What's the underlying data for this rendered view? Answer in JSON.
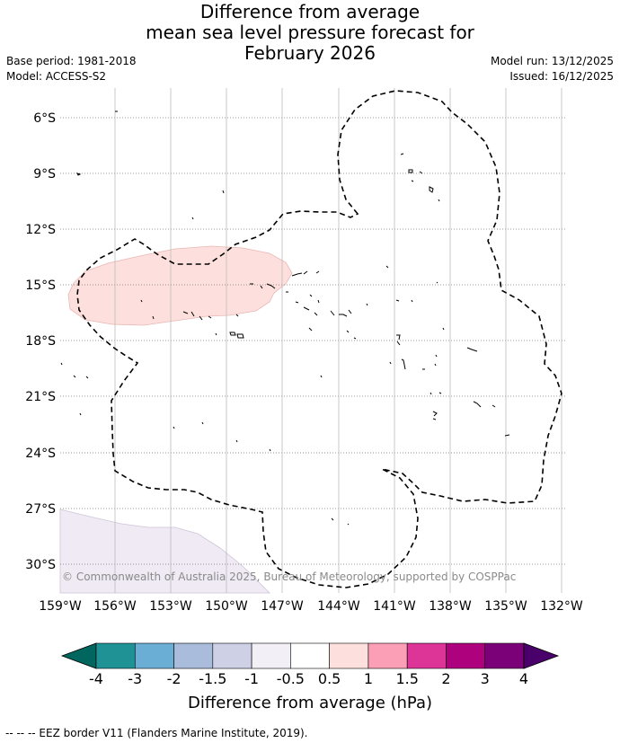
{
  "title": {
    "line1": "Difference from average",
    "line2": "mean sea level pressure forecast for",
    "line3": "February 2026"
  },
  "meta": {
    "base_period": "Base period: 1981-2018",
    "model": "Model: ACCESS-S2",
    "model_run": "Model run: 13/12/2025",
    "issued": "Issued: 16/12/2025"
  },
  "map": {
    "lat_labels": [
      "6°S",
      "9°S",
      "12°S",
      "15°S",
      "18°S",
      "21°S",
      "24°S",
      "27°S",
      "30°S"
    ],
    "lon_labels": [
      "159°W",
      "156°W",
      "153°W",
      "150°W",
      "147°W",
      "144°W",
      "141°W",
      "138°W",
      "135°W",
      "132°W"
    ],
    "copyright": "© Commonwealth of Australia 2025, Bureau of Meteorology, supported by COSPPac",
    "anomaly_colors": {
      "positive_region": "#fde0dd",
      "negative_region": "#efeaf3"
    }
  },
  "colorbar": {
    "title": "Difference from average (hPa)",
    "tick_labels": [
      "-4",
      "-3",
      "-2",
      "-1.5",
      "-1",
      "-0.5",
      "0.5",
      "1",
      "1.5",
      "2",
      "3",
      "4"
    ],
    "colors": [
      "#1f9296",
      "#6aaed6",
      "#a9bcdc",
      "#ced0e6",
      "#f2eff6",
      "#ffffff",
      "#fde0dd",
      "#fa9fb5",
      "#dd3497",
      "#ae017e",
      "#7a0177"
    ],
    "extend_low_color": "#01665e",
    "extend_high_color": "#49006a"
  },
  "footer": {
    "legend_text": "-- -- -- EEZ border V11 (Flanders Marine Institute, 2019)."
  }
}
